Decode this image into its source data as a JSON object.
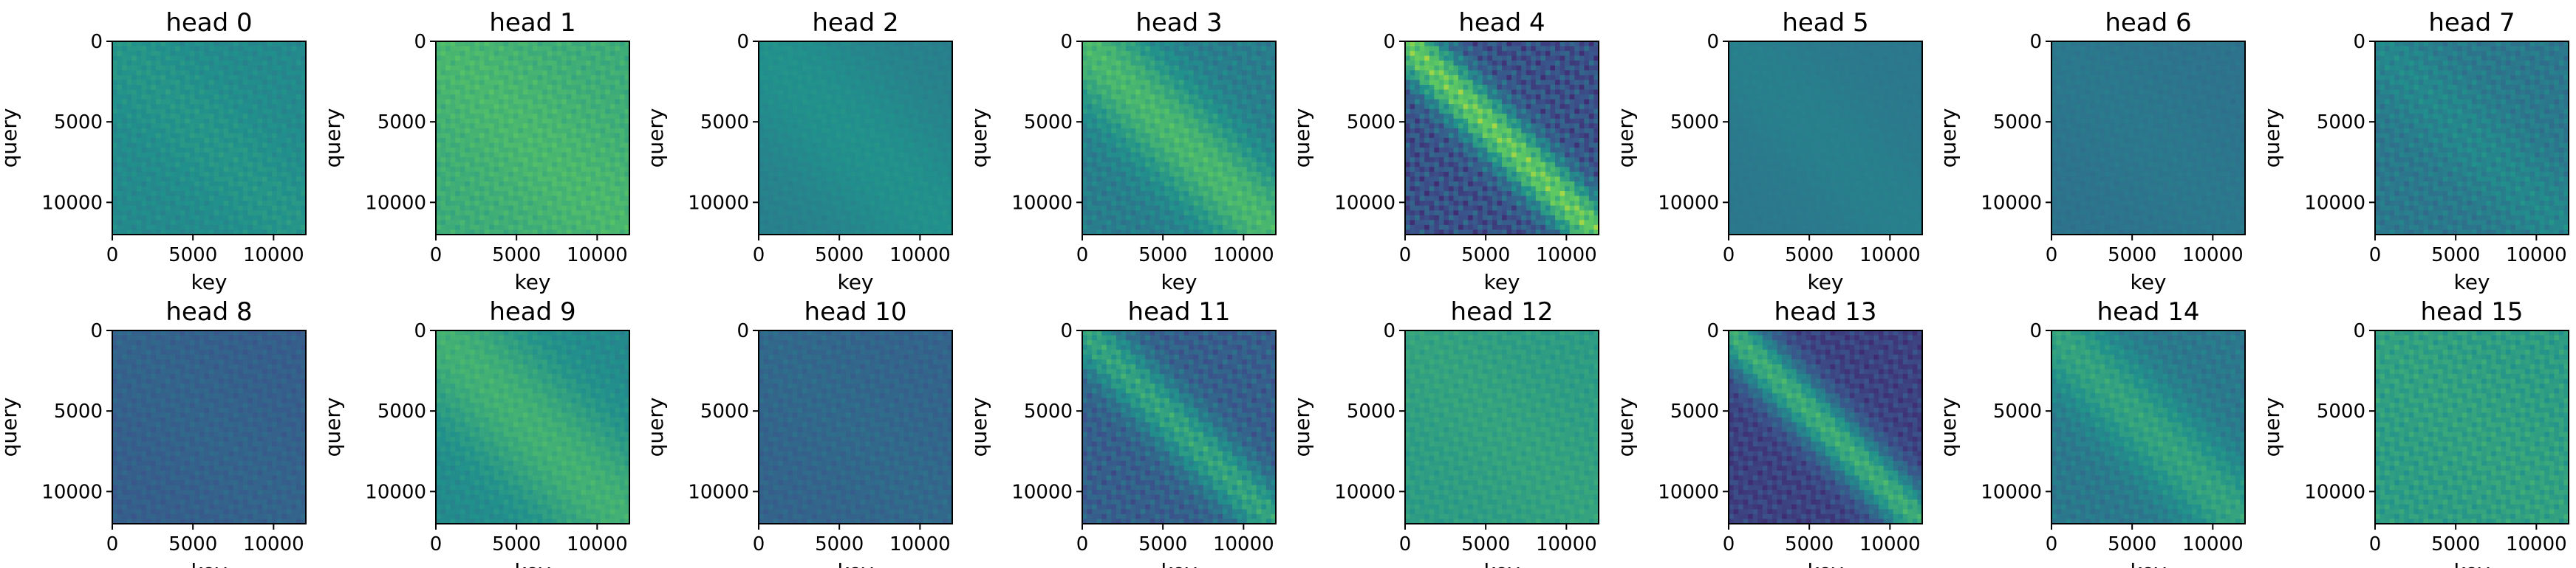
{
  "figure": {
    "colormap": "viridis",
    "colorscale": [
      "#440154",
      "#3b528b",
      "#21918c",
      "#5ec962",
      "#fde725"
    ]
  },
  "chart_data": [
    {
      "type": "heatmap",
      "title": "head 0",
      "xlabel": "key",
      "ylabel": "query",
      "xlim": [
        0,
        12000
      ],
      "ylim": [
        12000,
        0
      ],
      "xticks": [
        "0",
        "5000",
        "10000"
      ],
      "yticks": [
        "0",
        "5000",
        "10000"
      ],
      "base_level": 0.47,
      "diagonal_strength": 0.05,
      "diagonal_width": 0.25,
      "ripple_strength": 0.04
    },
    {
      "type": "heatmap",
      "title": "head 1",
      "xlabel": "key",
      "ylabel": "query",
      "xlim": [
        0,
        12000
      ],
      "ylim": [
        12000,
        0
      ],
      "xticks": [
        "0",
        "5000",
        "10000"
      ],
      "yticks": [
        "0",
        "5000",
        "10000"
      ],
      "base_level": 0.62,
      "diagonal_strength": 0.05,
      "diagonal_width": 0.3,
      "ripple_strength": 0.05
    },
    {
      "type": "heatmap",
      "title": "head 2",
      "xlabel": "key",
      "ylabel": "query",
      "xlim": [
        0,
        12000
      ],
      "ylim": [
        12000,
        0
      ],
      "xticks": [
        "0",
        "5000",
        "10000"
      ],
      "yticks": [
        "0",
        "5000",
        "10000"
      ],
      "base_level": 0.43,
      "diagonal_strength": 0.07,
      "diagonal_width": 0.35,
      "ripple_strength": 0.02
    },
    {
      "type": "heatmap",
      "title": "head 3",
      "xlabel": "key",
      "ylabel": "query",
      "xlim": [
        0,
        12000
      ],
      "ylim": [
        12000,
        0
      ],
      "xticks": [
        "0",
        "5000",
        "10000"
      ],
      "yticks": [
        "0",
        "5000",
        "10000"
      ],
      "base_level": 0.42,
      "diagonal_strength": 0.25,
      "diagonal_width": 0.22,
      "ripple_strength": 0.06
    },
    {
      "type": "heatmap",
      "title": "head 4",
      "xlabel": "key",
      "ylabel": "query",
      "xlim": [
        0,
        12000
      ],
      "ylim": [
        12000,
        0
      ],
      "xticks": [
        "0",
        "5000",
        "10000"
      ],
      "yticks": [
        "0",
        "5000",
        "10000"
      ],
      "base_level": 0.25,
      "diagonal_strength": 0.5,
      "diagonal_width": 0.13,
      "ripple_strength": 0.12
    },
    {
      "type": "heatmap",
      "title": "head 5",
      "xlabel": "key",
      "ylabel": "query",
      "xlim": [
        0,
        12000
      ],
      "ylim": [
        12000,
        0
      ],
      "xticks": [
        "0",
        "5000",
        "10000"
      ],
      "yticks": [
        "0",
        "5000",
        "10000"
      ],
      "base_level": 0.4,
      "diagonal_strength": 0.03,
      "diagonal_width": 0.3,
      "ripple_strength": 0.01
    },
    {
      "type": "heatmap",
      "title": "head 6",
      "xlabel": "key",
      "ylabel": "query",
      "xlim": [
        0,
        12000
      ],
      "ylim": [
        12000,
        0
      ],
      "xticks": [
        "0",
        "5000",
        "10000"
      ],
      "yticks": [
        "0",
        "5000",
        "10000"
      ],
      "base_level": 0.38,
      "diagonal_strength": 0.02,
      "diagonal_width": 0.3,
      "ripple_strength": 0.02
    },
    {
      "type": "heatmap",
      "title": "head 7",
      "xlabel": "key",
      "ylabel": "query",
      "xlim": [
        0,
        12000
      ],
      "ylim": [
        12000,
        0
      ],
      "xticks": [
        "0",
        "5000",
        "10000"
      ],
      "yticks": [
        "0",
        "5000",
        "10000"
      ],
      "base_level": 0.4,
      "diagonal_strength": 0.06,
      "diagonal_width": 0.2,
      "ripple_strength": 0.06
    },
    {
      "type": "heatmap",
      "title": "head 8",
      "xlabel": "key",
      "ylabel": "query",
      "xlim": [
        0,
        12000
      ],
      "ylim": [
        12000,
        0
      ],
      "xticks": [
        "0",
        "5000",
        "10000"
      ],
      "yticks": [
        "0",
        "5000",
        "10000"
      ],
      "base_level": 0.3,
      "diagonal_strength": 0.02,
      "diagonal_width": 0.3,
      "ripple_strength": 0.04
    },
    {
      "type": "heatmap",
      "title": "head 9",
      "xlabel": "key",
      "ylabel": "query",
      "xlim": [
        0,
        12000
      ],
      "ylim": [
        12000,
        0
      ],
      "xticks": [
        "0",
        "5000",
        "10000"
      ],
      "yticks": [
        "0",
        "5000",
        "10000"
      ],
      "base_level": 0.47,
      "diagonal_strength": 0.17,
      "diagonal_width": 0.3,
      "ripple_strength": 0.04
    },
    {
      "type": "heatmap",
      "title": "head 10",
      "xlabel": "key",
      "ylabel": "query",
      "xlim": [
        0,
        12000
      ],
      "ylim": [
        12000,
        0
      ],
      "xticks": [
        "0",
        "5000",
        "10000"
      ],
      "yticks": [
        "0",
        "5000",
        "10000"
      ],
      "base_level": 0.32,
      "diagonal_strength": 0.02,
      "diagonal_width": 0.3,
      "ripple_strength": 0.04
    },
    {
      "type": "heatmap",
      "title": "head 11",
      "xlabel": "key",
      "ylabel": "query",
      "xlim": [
        0,
        12000
      ],
      "ylim": [
        12000,
        0
      ],
      "xticks": [
        "0",
        "5000",
        "10000"
      ],
      "yticks": [
        "0",
        "5000",
        "10000"
      ],
      "base_level": 0.3,
      "diagonal_strength": 0.28,
      "diagonal_width": 0.14,
      "ripple_strength": 0.08
    },
    {
      "type": "heatmap",
      "title": "head 12",
      "xlabel": "key",
      "ylabel": "query",
      "xlim": [
        0,
        12000
      ],
      "ylim": [
        12000,
        0
      ],
      "xticks": [
        "0",
        "5000",
        "10000"
      ],
      "yticks": [
        "0",
        "5000",
        "10000"
      ],
      "base_level": 0.55,
      "diagonal_strength": 0.03,
      "diagonal_width": 0.3,
      "ripple_strength": 0.04
    },
    {
      "type": "heatmap",
      "title": "head 13",
      "xlabel": "key",
      "ylabel": "query",
      "xlim": [
        0,
        12000
      ],
      "ylim": [
        12000,
        0
      ],
      "xticks": [
        "0",
        "5000",
        "10000"
      ],
      "yticks": [
        "0",
        "5000",
        "10000"
      ],
      "base_level": 0.2,
      "diagonal_strength": 0.42,
      "diagonal_width": 0.13,
      "ripple_strength": 0.07
    },
    {
      "type": "heatmap",
      "title": "head 14",
      "xlabel": "key",
      "ylabel": "query",
      "xlim": [
        0,
        12000
      ],
      "ylim": [
        12000,
        0
      ],
      "xticks": [
        "0",
        "5000",
        "10000"
      ],
      "yticks": [
        "0",
        "5000",
        "10000"
      ],
      "base_level": 0.4,
      "diagonal_strength": 0.18,
      "diagonal_width": 0.2,
      "ripple_strength": 0.05
    },
    {
      "type": "heatmap",
      "title": "head 15",
      "xlabel": "key",
      "ylabel": "query",
      "xlim": [
        0,
        12000
      ],
      "ylim": [
        12000,
        0
      ],
      "xticks": [
        "0",
        "5000",
        "10000"
      ],
      "yticks": [
        "0",
        "5000",
        "10000"
      ],
      "base_level": 0.55,
      "diagonal_strength": 0.02,
      "diagonal_width": 0.3,
      "ripple_strength": 0.06
    }
  ]
}
